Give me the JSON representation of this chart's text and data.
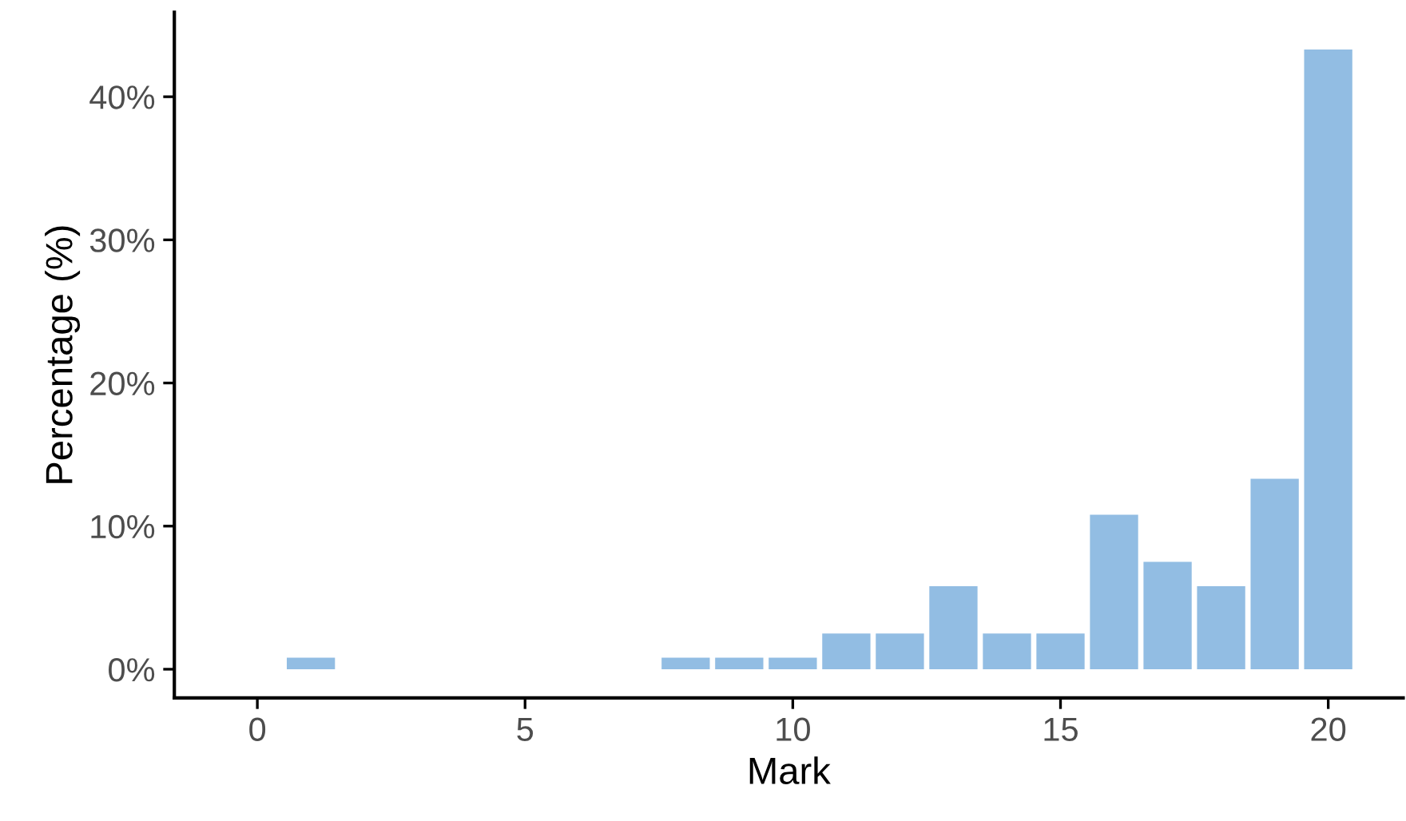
{
  "chart_data": {
    "type": "bar",
    "xlabel": "Mark",
    "ylabel": "Percentage (%)",
    "x": [
      1,
      8,
      9,
      10,
      11,
      12,
      13,
      14,
      15,
      16,
      17,
      18,
      19,
      20
    ],
    "values": [
      0.8,
      0.8,
      0.8,
      0.8,
      2.5,
      2.5,
      5.8,
      2.5,
      2.5,
      10.8,
      7.5,
      5.8,
      13.3,
      43.3
    ],
    "color": "#92bde3",
    "xlim": [
      -1.55,
      21.4
    ],
    "xticks": [
      0,
      5,
      10,
      15,
      20
    ],
    "ylim": [
      -2,
      45.9
    ],
    "yticks": [
      {
        "value": 0,
        "label": "0%"
      },
      {
        "value": 10,
        "label": "10%"
      },
      {
        "value": 20,
        "label": "20%"
      },
      {
        "value": 30,
        "label": "30%"
      },
      {
        "value": 40,
        "label": "40%"
      }
    ],
    "grid": false
  }
}
